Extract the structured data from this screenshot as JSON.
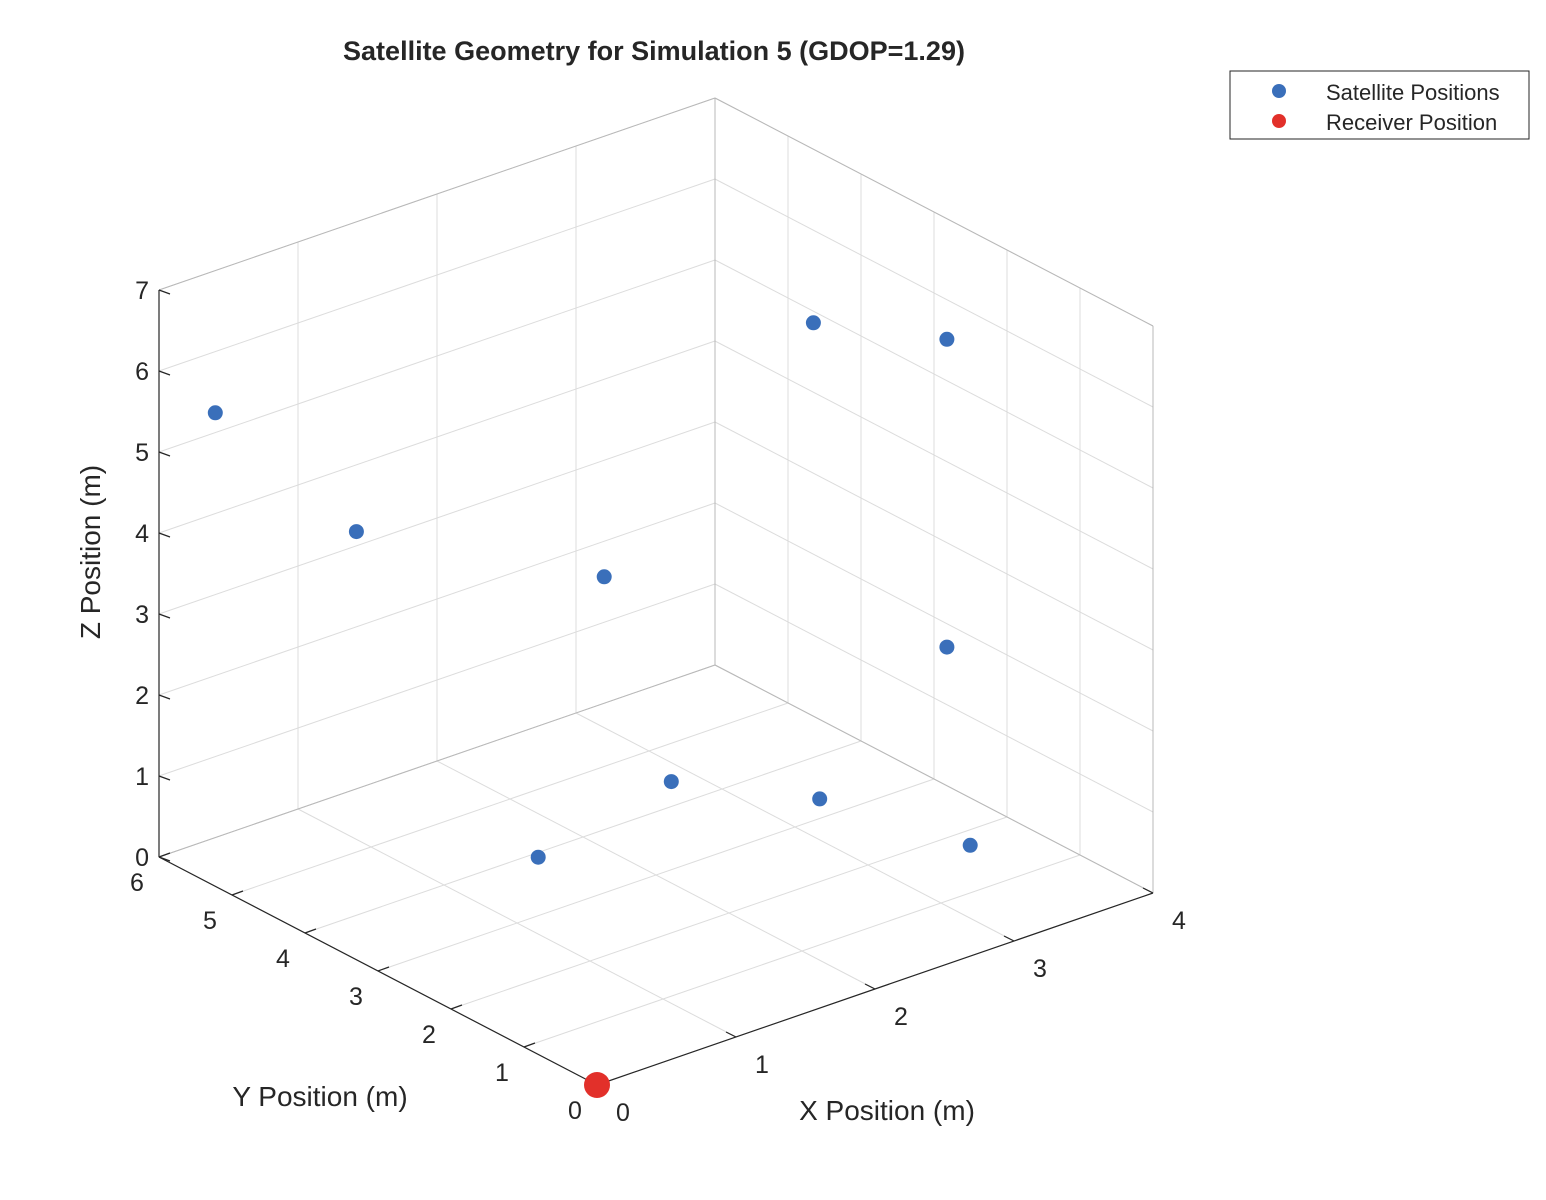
{
  "chart_data": {
    "type": "scatter",
    "title": "Satellite Geometry for Simulation 5 (GDOP=1.29)",
    "xlabel": "X Position (m)",
    "ylabel": "Y Position (m)",
    "zlabel": "Z Position (m)",
    "xlim": [
      0,
      4
    ],
    "ylim": [
      0,
      6
    ],
    "zlim": [
      0,
      7
    ],
    "xticks": [
      "0",
      "1",
      "2",
      "3",
      "4"
    ],
    "yticks": [
      "0",
      "1",
      "2",
      "3",
      "4",
      "5",
      "6"
    ],
    "zticks": [
      "0",
      "1",
      "2",
      "3",
      "4",
      "5",
      "6",
      "7"
    ],
    "grid": true,
    "legend_position": "top-right",
    "series": [
      {
        "name": "Satellite Positions",
        "color": "#3a6fba",
        "points": [
          {
            "x": 0.3,
            "y": 5.8,
            "z": 5.4
          },
          {
            "x": 1.0,
            "y": 5.2,
            "z": 3.8
          },
          {
            "x": 2.1,
            "y": 3.9,
            "z": 3.2
          },
          {
            "x": 3.5,
            "y": 3.7,
            "z": 5.6
          },
          {
            "x": 3.2,
            "y": 1.3,
            "z": 6.7
          },
          {
            "x": 1.1,
            "y": 2.9,
            "z": 0.8
          },
          {
            "x": 1.9,
            "y": 2.6,
            "z": 1.4
          },
          {
            "x": 2.6,
            "y": 1.9,
            "z": 1.1
          },
          {
            "x": 3.2,
            "y": 1.3,
            "z": 2.9
          },
          {
            "x": 3.0,
            "y": 0.6,
            "z": 0.9
          }
        ]
      },
      {
        "name": "Receiver Position",
        "color": "#e2302a",
        "points": [
          {
            "x": 0,
            "y": 0,
            "z": 0
          }
        ]
      }
    ]
  }
}
